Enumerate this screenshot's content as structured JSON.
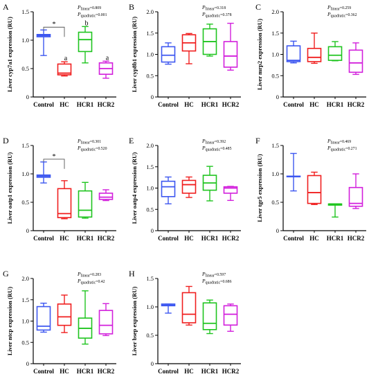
{
  "categories": [
    "Control",
    "HC",
    "HCR1",
    "HCR2"
  ],
  "colors": {
    "Control": "#3d57f0",
    "HC": "#f01e1e",
    "HCR1": "#1ec41e",
    "HCR2": "#d21edc"
  },
  "chart_data": [
    {
      "panel": "A",
      "type": "boxplot",
      "ylabel": "Liver cyp7a1 expression (RU)",
      "ylim": [
        0,
        1.5
      ],
      "ticks": [
        "0",
        "0.5",
        "1.0",
        "1.5"
      ],
      "p_linear": "0.809",
      "p_quadratic": "0.001",
      "boxes": [
        {
          "min": 0.73,
          "q1": 1.06,
          "median": 1.08,
          "q3": 1.1,
          "max": 1.18
        },
        {
          "min": 0.37,
          "q1": 0.39,
          "median": 0.42,
          "q3": 0.58,
          "max": 0.62
        },
        {
          "min": 0.6,
          "q1": 0.8,
          "median": 1.01,
          "q3": 1.14,
          "max": 1.24
        },
        {
          "min": 0.33,
          "q1": 0.4,
          "median": 0.5,
          "q3": 0.6,
          "max": 0.63
        }
      ],
      "significance": [
        {
          "from": "Control",
          "to": "HC",
          "label": "*"
        }
      ],
      "letters": [
        "",
        "a",
        "b",
        "a"
      ]
    },
    {
      "panel": "B",
      "type": "boxplot",
      "ylabel": "Liver cyp8b1 expression (RU)",
      "ylim": [
        0,
        2.0
      ],
      "ticks": [
        "0",
        "0.5",
        "1.0",
        "1.5",
        "2.0"
      ],
      "p_linear": "0.318",
      "p_quadratic": "0.378",
      "boxes": [
        {
          "min": 0.77,
          "q1": 0.82,
          "median": 0.98,
          "q3": 1.18,
          "max": 1.27
        },
        {
          "min": 0.78,
          "q1": 1.08,
          "median": 1.27,
          "q3": 1.46,
          "max": 1.49
        },
        {
          "min": 0.96,
          "q1": 1.0,
          "median": 1.3,
          "q3": 1.6,
          "max": 1.71
        },
        {
          "min": 0.63,
          "q1": 0.7,
          "median": 0.96,
          "q3": 1.3,
          "max": 1.73
        }
      ]
    },
    {
      "panel": "C",
      "type": "boxplot",
      "ylabel": "Liver mrp2 expression (RU)",
      "ylim": [
        0,
        2.0
      ],
      "ticks": [
        "0",
        "0.5",
        "1.0",
        "1.5",
        "2.0"
      ],
      "p_linear": "0.259",
      "p_quadratic": "0.362",
      "boxes": [
        {
          "min": 0.8,
          "q1": 0.83,
          "median": 0.86,
          "q3": 1.2,
          "max": 1.31
        },
        {
          "min": 0.79,
          "q1": 0.83,
          "median": 0.93,
          "q3": 1.14,
          "max": 1.5
        },
        {
          "min": 0.85,
          "q1": 0.86,
          "median": 0.98,
          "q3": 1.18,
          "max": 1.3
        },
        {
          "min": 0.53,
          "q1": 0.58,
          "median": 0.8,
          "q3": 1.1,
          "max": 1.27
        }
      ]
    },
    {
      "panel": "D",
      "type": "boxplot",
      "ylabel": "Liver oatp1 expression (RU)",
      "ylim": [
        0,
        1.5
      ],
      "ticks": [
        "0",
        "0.5",
        "1.0",
        "1.5"
      ],
      "p_linear": "0.301",
      "p_quadratic": "0.520",
      "boxes": [
        {
          "min": 0.84,
          "q1": 0.94,
          "median": 0.96,
          "q3": 0.98,
          "max": 1.21
        },
        {
          "min": 0.21,
          "q1": 0.23,
          "median": 0.3,
          "q3": 0.74,
          "max": 0.88
        },
        {
          "min": 0.22,
          "q1": 0.24,
          "median": 0.36,
          "q3": 0.7,
          "max": 0.85
        },
        {
          "min": 0.53,
          "q1": 0.55,
          "median": 0.59,
          "q3": 0.66,
          "max": 0.72
        }
      ],
      "significance": [
        {
          "from": "Control",
          "to": "HC",
          "label": "*"
        }
      ]
    },
    {
      "panel": "E",
      "type": "boxplot",
      "ylabel": "Liver oatp4 expression (RU)",
      "ylim": [
        0,
        2.0
      ],
      "ticks": [
        "0",
        "0.5",
        "1.0",
        "1.5",
        "2.0"
      ],
      "p_linear": "0.392",
      "p_quadratic": "0.485",
      "boxes": [
        {
          "min": 0.63,
          "q1": 0.8,
          "median": 1.03,
          "q3": 1.16,
          "max": 1.26
        },
        {
          "min": 0.78,
          "q1": 0.88,
          "median": 1.08,
          "q3": 1.18,
          "max": 1.26
        },
        {
          "min": 0.7,
          "q1": 0.95,
          "median": 1.12,
          "q3": 1.3,
          "max": 1.51
        },
        {
          "min": 0.71,
          "q1": 0.88,
          "median": 1.0,
          "q3": 1.03,
          "max": 1.04
        }
      ]
    },
    {
      "panel": "F",
      "type": "boxplot",
      "ylabel": "Liver tgr5 expression (RU)",
      "ylim": [
        0,
        1.5
      ],
      "ticks": [
        "0",
        "0.5",
        "1.0",
        "1.5"
      ],
      "p_linear": "0.469",
      "p_quadratic": "0.271",
      "boxes": [
        {
          "min": 0.7,
          "q1": 0.95,
          "median": 0.95,
          "q3": 0.96,
          "max": 1.36
        },
        {
          "min": 0.46,
          "q1": 0.48,
          "median": 0.67,
          "q3": 0.97,
          "max": 1.03
        },
        {
          "min": 0.24,
          "q1": 0.45,
          "median": 0.47,
          "q3": 0.47,
          "max": 0.47
        },
        {
          "min": 0.39,
          "q1": 0.43,
          "median": 0.48,
          "q3": 0.76,
          "max": 1.0
        }
      ]
    },
    {
      "panel": "G",
      "type": "boxplot",
      "ylabel": "Liver ntcp expression (RU)",
      "ylim": [
        0,
        2.0
      ],
      "ticks": [
        "0",
        "0.5",
        "1.0",
        "1.5",
        "2.0"
      ],
      "p_linear": "0.283",
      "p_quadratic": "0.42",
      "boxes": [
        {
          "min": 0.74,
          "q1": 0.79,
          "median": 0.88,
          "q3": 1.34,
          "max": 1.42
        },
        {
          "min": 0.73,
          "q1": 0.9,
          "median": 1.1,
          "q3": 1.4,
          "max": 1.61
        },
        {
          "min": 0.46,
          "q1": 0.6,
          "median": 0.83,
          "q3": 1.07,
          "max": 1.71
        },
        {
          "min": 0.66,
          "q1": 0.7,
          "median": 0.9,
          "q3": 1.25,
          "max": 1.41
        }
      ]
    },
    {
      "panel": "H",
      "type": "boxplot",
      "ylabel": "Liver bsep expression (RU)",
      "ylim": [
        0,
        1.5
      ],
      "ticks": [
        "0",
        "0.5",
        "1.0",
        "1.5"
      ],
      "p_linear": "0.597",
      "p_quadratic": "0.686",
      "boxes": [
        {
          "min": 0.89,
          "q1": 1.02,
          "median": 1.03,
          "q3": 1.05,
          "max": 1.05
        },
        {
          "min": 0.68,
          "q1": 0.72,
          "median": 0.87,
          "q3": 1.25,
          "max": 1.36
        },
        {
          "min": 0.53,
          "q1": 0.6,
          "median": 0.71,
          "q3": 1.07,
          "max": 1.12
        },
        {
          "min": 0.57,
          "q1": 0.68,
          "median": 0.87,
          "q3": 1.02,
          "max": 1.05
        }
      ]
    }
  ]
}
